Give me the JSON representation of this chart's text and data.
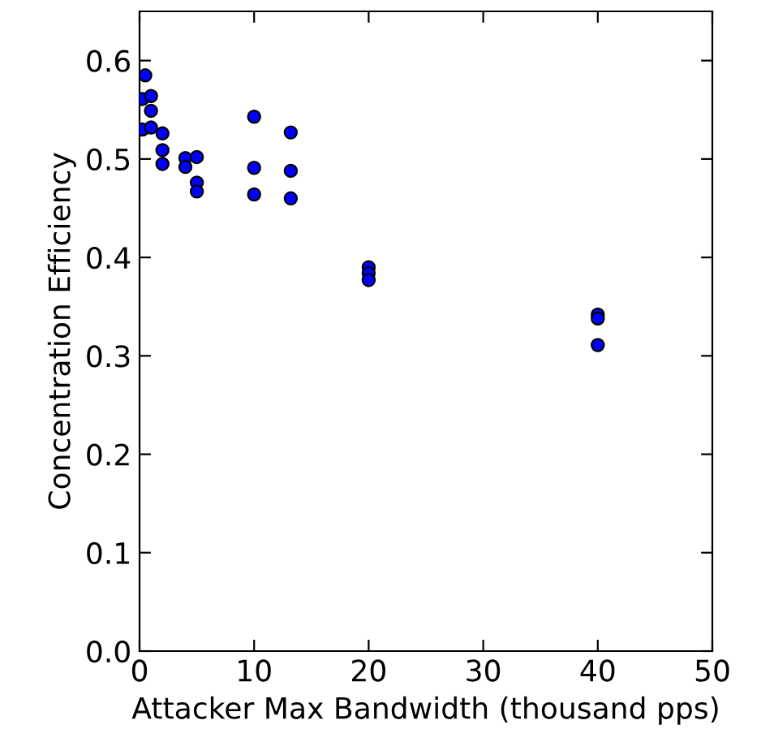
{
  "chart_data": {
    "type": "scatter",
    "xlabel": "Attacker Max Bandwidth (thousand pps)",
    "ylabel": "Concentration Efficiency",
    "xlim": [
      0,
      50
    ],
    "xticks": [
      0,
      10,
      20,
      30,
      40,
      50
    ],
    "ylim": [
      0,
      0.65
    ],
    "yticks": [
      {
        "value": 0.0,
        "label": "0.0"
      },
      0.1,
      0.2,
      0.3,
      0.4,
      0.5,
      0.6
    ],
    "grid": false,
    "marker": "circle",
    "legend": false,
    "series": [
      {
        "color": "#0000ff",
        "x": [
          0.5,
          0.25,
          0.25,
          1,
          1,
          1,
          2,
          2,
          2,
          4,
          4,
          5,
          5,
          5,
          10,
          10,
          10,
          13.2,
          13.2,
          13.2,
          20,
          20,
          20,
          40,
          40,
          40
        ],
        "values": [
          0.585,
          0.561,
          0.53,
          0.564,
          0.549,
          0.532,
          0.526,
          0.509,
          0.495,
          0.501,
          0.492,
          0.502,
          0.476,
          0.467,
          0.543,
          0.491,
          0.464,
          0.527,
          0.488,
          0.46,
          0.39,
          0.384,
          0.377,
          0.342,
          0.338,
          0.311
        ]
      }
    ]
  }
}
